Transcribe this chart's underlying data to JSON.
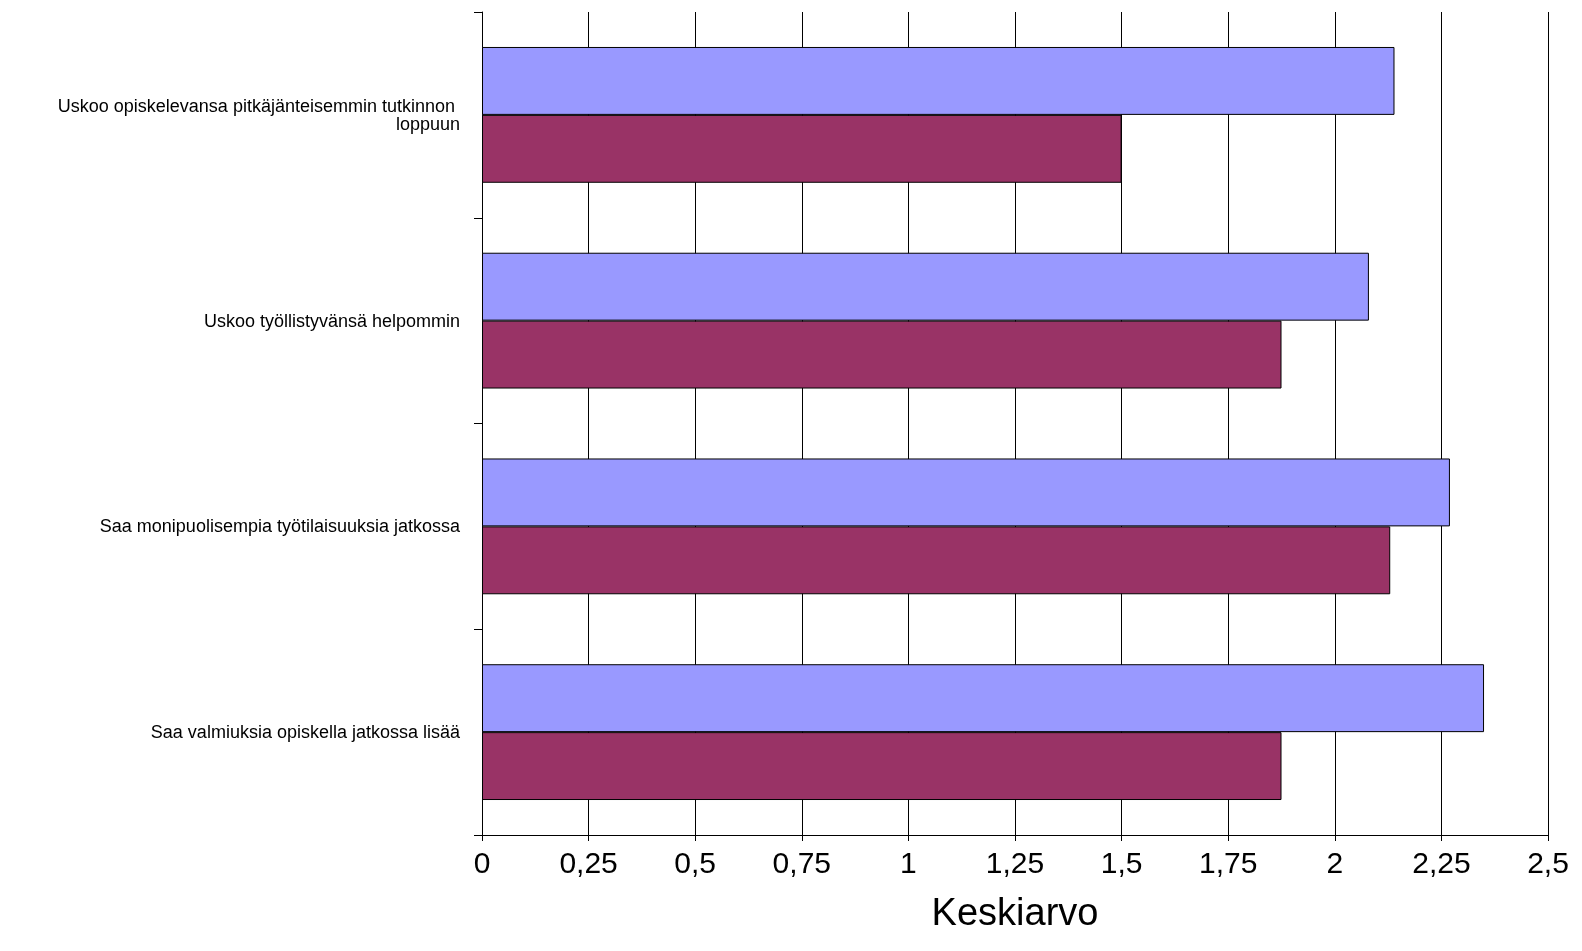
{
  "chart_data": {
    "type": "bar",
    "orientation": "horizontal",
    "xlabel": "Keskiarvo",
    "categories": [
      "Uskoo opiskelevansa pitkäjänteisemmin tutkinnon loppuun",
      "Uskoo työllistyvänsä helpommin",
      "Saa monipuolisempia työtilaisuuksia jatkossa",
      "Saa valmiuksia opiskella jatkossa lisää"
    ],
    "series": [
      {
        "color": "#9999ff",
        "values": [
          2.14,
          2.08,
          2.27,
          2.35
        ]
      },
      {
        "color": "#993366",
        "values": [
          1.5,
          1.875,
          2.13,
          1.875
        ]
      }
    ],
    "xlim": [
      0,
      2.5
    ],
    "xticks": [
      0,
      {
        "value": 0.25,
        "label": "0,25"
      },
      {
        "value": 0.5,
        "label": "0,5"
      },
      {
        "value": 0.75,
        "label": "0,75"
      },
      1,
      {
        "value": 1.25,
        "label": "1,25"
      },
      {
        "value": 1.5,
        "label": "1,5"
      },
      {
        "value": 1.75,
        "label": "1,75"
      },
      2,
      {
        "value": 2.25,
        "label": "2,25"
      },
      {
        "value": 2.5,
        "label": "2,5"
      }
    ],
    "grid": "x"
  }
}
